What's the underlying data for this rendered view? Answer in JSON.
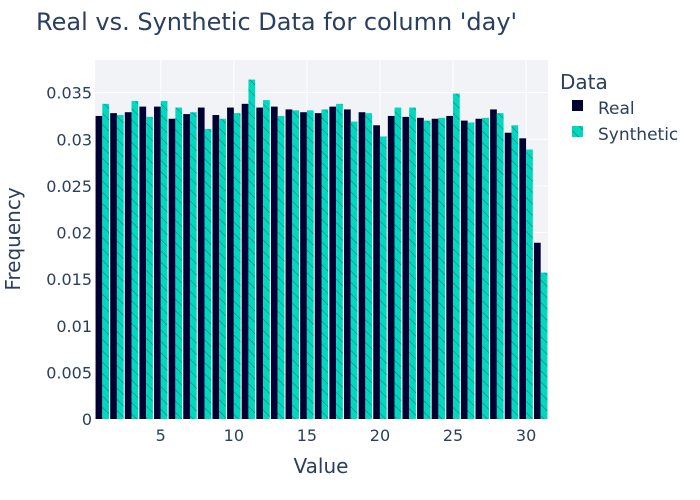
{
  "colors": {
    "real": "#000033",
    "synthetic": "#00d9c0",
    "synthetic_hatch": "#0a7f78",
    "plot_bg": "#f2f3f7",
    "grid": "#ffffff",
    "text": "#2a3f5f"
  },
  "chart_data": {
    "type": "bar",
    "title": "Real vs. Synthetic Data for column 'day'",
    "xlabel": "Value",
    "ylabel": "Frequency",
    "legend_title": "Data",
    "legend_position": "right",
    "grid": true,
    "xlim": [
      0.5,
      31.5
    ],
    "ylim": [
      0,
      0.0385
    ],
    "x_ticks": [
      5,
      10,
      15,
      20,
      25,
      30
    ],
    "y_ticks": [
      0,
      0.005,
      0.01,
      0.015,
      0.02,
      0.025,
      0.03,
      0.035
    ],
    "y_tick_labels": [
      "0",
      "0.005",
      "0.01",
      "0.015",
      "0.02",
      "0.025",
      "0.03",
      "0.035"
    ],
    "x": [
      1,
      2,
      3,
      4,
      5,
      6,
      7,
      8,
      9,
      10,
      11,
      12,
      13,
      14,
      15,
      16,
      17,
      18,
      19,
      20,
      21,
      22,
      23,
      24,
      25,
      26,
      27,
      28,
      29,
      30,
      31
    ],
    "series": [
      {
        "name": "Real",
        "pattern": "solid",
        "values": [
          0.0325,
          0.0328,
          0.0329,
          0.0335,
          0.0335,
          0.0322,
          0.0327,
          0.0334,
          0.0326,
          0.0334,
          0.0338,
          0.0334,
          0.0335,
          0.0332,
          0.0329,
          0.0328,
          0.0335,
          0.0332,
          0.0329,
          0.0315,
          0.0325,
          0.0324,
          0.0323,
          0.0322,
          0.0325,
          0.032,
          0.0322,
          0.0332,
          0.0307,
          0.0301,
          0.0189
        ]
      },
      {
        "name": "Synthetic",
        "pattern": "hatch",
        "values": [
          0.0338,
          0.0326,
          0.0341,
          0.0324,
          0.0341,
          0.0334,
          0.0329,
          0.0311,
          0.0322,
          0.0328,
          0.0364,
          0.0342,
          0.0325,
          0.0331,
          0.0331,
          0.0332,
          0.0338,
          0.0319,
          0.0328,
          0.0303,
          0.0334,
          0.0334,
          0.032,
          0.0323,
          0.0349,
          0.0318,
          0.0323,
          0.0328,
          0.0315,
          0.0289,
          0.0157
        ]
      }
    ]
  }
}
